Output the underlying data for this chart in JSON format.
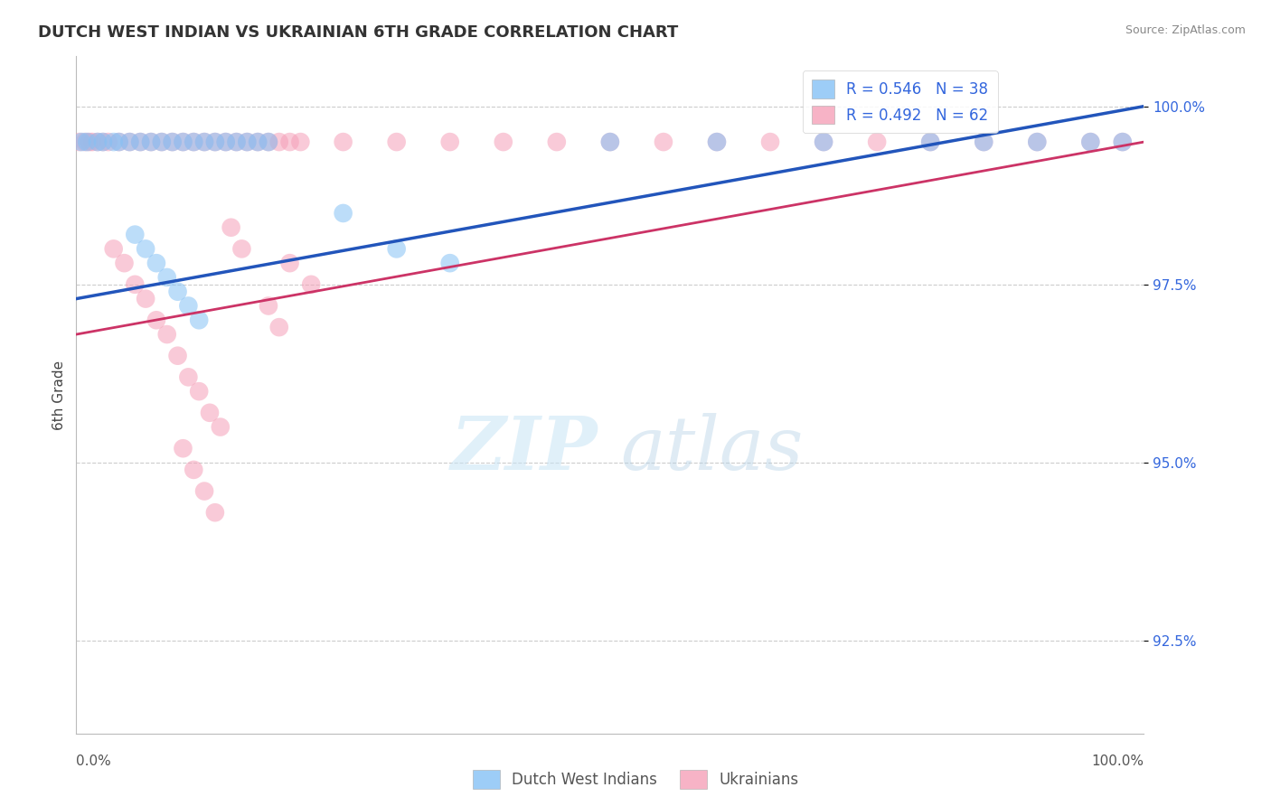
{
  "title": "DUTCH WEST INDIAN VS UKRAINIAN 6TH GRADE CORRELATION CHART",
  "source": "Source: ZipAtlas.com",
  "ylabel": "6th Grade",
  "y_ticks": [
    92.5,
    95.0,
    97.5,
    100.0
  ],
  "y_tick_labels": [
    "92.5%",
    "95.0%",
    "97.5%",
    "100.0%"
  ],
  "xmin": 0.0,
  "xmax": 100.0,
  "ymin": 91.2,
  "ymax": 100.7,
  "blue_color": "#85C1F5",
  "pink_color": "#F5A0B8",
  "blue_line_color": "#2255BB",
  "pink_line_color": "#CC3366",
  "legend_text_color": "#3366DD",
  "R_blue": 0.546,
  "N_blue": 38,
  "R_pink": 0.492,
  "N_pink": 62,
  "blue_scatter_x": [
    0.5,
    1.0,
    2.0,
    2.5,
    3.5,
    4.0,
    5.0,
    6.0,
    7.0,
    8.0,
    9.0,
    10.0,
    11.0,
    12.0,
    13.0,
    14.0,
    15.0,
    16.0,
    17.0,
    18.0,
    5.5,
    6.5,
    7.5,
    8.5,
    9.5,
    10.5,
    11.5,
    25.0,
    30.0,
    35.0,
    50.0,
    60.0,
    70.0,
    80.0,
    85.0,
    90.0,
    95.0,
    98.0
  ],
  "blue_scatter_y": [
    99.5,
    99.5,
    99.5,
    99.5,
    99.5,
    99.5,
    99.5,
    99.5,
    99.5,
    99.5,
    99.5,
    99.5,
    99.5,
    99.5,
    99.5,
    99.5,
    99.5,
    99.5,
    99.5,
    99.5,
    98.2,
    98.0,
    97.8,
    97.6,
    97.4,
    97.2,
    97.0,
    98.5,
    98.0,
    97.8,
    99.5,
    99.5,
    99.5,
    99.5,
    99.5,
    99.5,
    99.5,
    99.5
  ],
  "pink_scatter_x": [
    0.3,
    0.8,
    1.2,
    1.5,
    2.0,
    2.5,
    3.0,
    4.0,
    5.0,
    6.0,
    7.0,
    8.0,
    9.0,
    10.0,
    11.0,
    12.0,
    13.0,
    14.0,
    15.0,
    16.0,
    17.0,
    18.0,
    19.0,
    20.0,
    21.0,
    25.0,
    30.0,
    35.0,
    40.0,
    45.0,
    50.0,
    55.0,
    60.0,
    65.0,
    70.0,
    75.0,
    80.0,
    85.0,
    90.0,
    95.0,
    98.0,
    3.5,
    4.5,
    5.5,
    6.5,
    7.5,
    8.5,
    9.5,
    10.5,
    11.5,
    12.5,
    13.5,
    14.5,
    15.5,
    20.0,
    22.0,
    18.0,
    19.0,
    10.0,
    11.0,
    12.0,
    13.0
  ],
  "pink_scatter_y": [
    99.5,
    99.5,
    99.5,
    99.5,
    99.5,
    99.5,
    99.5,
    99.5,
    99.5,
    99.5,
    99.5,
    99.5,
    99.5,
    99.5,
    99.5,
    99.5,
    99.5,
    99.5,
    99.5,
    99.5,
    99.5,
    99.5,
    99.5,
    99.5,
    99.5,
    99.5,
    99.5,
    99.5,
    99.5,
    99.5,
    99.5,
    99.5,
    99.5,
    99.5,
    99.5,
    99.5,
    99.5,
    99.5,
    99.5,
    99.5,
    99.5,
    98.0,
    97.8,
    97.5,
    97.3,
    97.0,
    96.8,
    96.5,
    96.2,
    96.0,
    95.7,
    95.5,
    98.3,
    98.0,
    97.8,
    97.5,
    97.2,
    96.9,
    95.2,
    94.9,
    94.6,
    94.3
  ],
  "blue_reg_x0": 0.0,
  "blue_reg_y0": 97.3,
  "blue_reg_x1": 100.0,
  "blue_reg_y1": 100.0,
  "pink_reg_x0": 0.0,
  "pink_reg_y0": 96.8,
  "pink_reg_x1": 100.0,
  "pink_reg_y1": 99.5
}
